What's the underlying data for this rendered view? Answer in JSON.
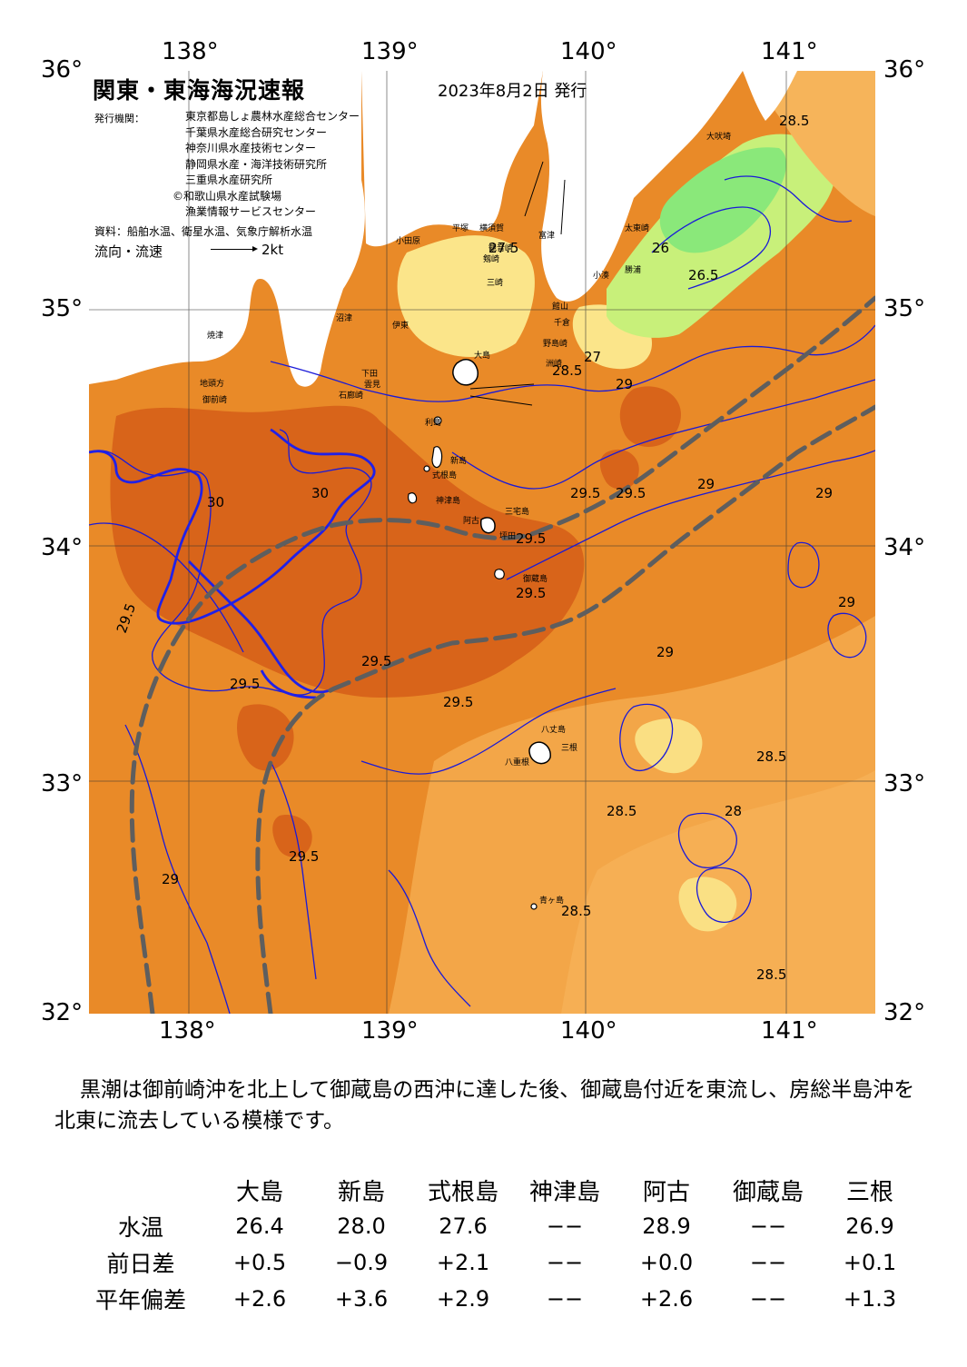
{
  "header": {
    "title": "関東・東海海況速報",
    "date": "2023年8月2日 発行",
    "agency_label": "発行機関：",
    "agencies": [
      "東京都島しょ農林水産総合センター",
      "千葉県水産総合研究センター",
      "神奈川県水産技術センター",
      "静岡県水産・海洋技術研究所",
      "三重県水産研究所",
      "©和歌山県水産試験場",
      "漁業情報サービスセンター"
    ],
    "source": "資料：船舶水温、衛星水温、気象庁解析水温",
    "flow_label": "流向・流速",
    "flow_value": "2kt"
  },
  "axes": {
    "top_lon": [
      "138°",
      "139°",
      "140°",
      "141°"
    ],
    "bottom_lon": [
      "138°",
      "139°",
      "140°",
      "141°"
    ],
    "left_lat": [
      "36°",
      "35°",
      "34°",
      "33°",
      "32°"
    ],
    "right_lat": [
      "36°",
      "35°",
      "34°",
      "33°",
      "32°"
    ]
  },
  "map": {
    "colors": {
      "sea_dark": "#e07a1e",
      "sea_mid": "#f09a34",
      "sea_light": "#f6b45a",
      "sea_pale": "#fad27a",
      "warm_core": "#d8641a",
      "yellow": "#fbe58a",
      "green_light": "#c8f07a",
      "green": "#8ae87a",
      "land": "#ffffff",
      "contour": "#1a1ad8",
      "kuroshio": "#606060"
    },
    "place_labels": [
      "大島",
      "利島",
      "新島",
      "式根島",
      "神津島",
      "三宅島",
      "阿古",
      "坪田",
      "御蔵島",
      "八丈島",
      "三根",
      "八重根",
      "青ヶ島",
      "野島崎",
      "千倉",
      "館山",
      "大吠埼",
      "太東崎",
      "勝浦",
      "小湊",
      "富津",
      "観音崎",
      "三崎",
      "剱崎",
      "横須賀",
      "平塚",
      "小田原",
      "伊東",
      "下田",
      "石廊崎",
      "雲見",
      "沼津",
      "焼津",
      "御前崎",
      "地頭方",
      "洲崎"
    ],
    "temp_labels": [
      "28.5",
      "29",
      "29.5",
      "30",
      "27",
      "27.5",
      "26",
      "26.5",
      "28"
    ]
  },
  "summary": "黒潮は御前崎沖を北上して御蔵島の西沖に達した後、御蔵島付近を東流し、房総半島沖を北東に流去している模様です。",
  "table": {
    "columns": [
      "大島",
      "新島",
      "式根島",
      "神津島",
      "阿古",
      "御蔵島",
      "三根"
    ],
    "rows": [
      {
        "label": "水温",
        "values": [
          "26.4",
          "28.0",
          "27.6",
          "−−",
          "28.9",
          "−−",
          "26.9"
        ]
      },
      {
        "label": "前日差",
        "values": [
          "+0.5",
          "−0.9",
          "+2.1",
          "−−",
          "+0.0",
          "−−",
          "+0.1"
        ]
      },
      {
        "label": "平年偏差",
        "values": [
          "+2.6",
          "+3.6",
          "+2.9",
          "−−",
          "+2.6",
          "−−",
          "+1.3"
        ]
      }
    ]
  }
}
